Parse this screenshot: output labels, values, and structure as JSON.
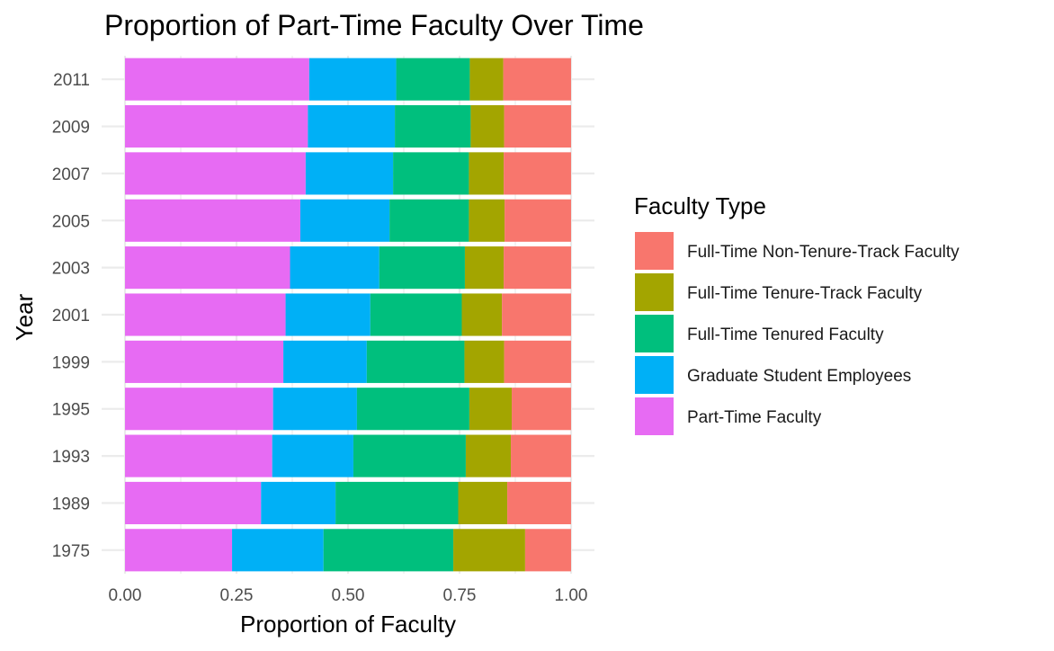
{
  "chart_data": {
    "type": "bar",
    "orientation": "horizontal",
    "stacked": true,
    "title": "Proportion of Part-Time Faculty Over Time",
    "xlabel": "Proportion of Faculty",
    "ylabel": "Year",
    "xlim": [
      0,
      1
    ],
    "xticks": [
      "0.00",
      "0.25",
      "0.50",
      "0.75",
      "1.00"
    ],
    "grid": true,
    "legend_position": "right",
    "legend_title": "Faculty Type",
    "categories": [
      "1975",
      "1989",
      "1993",
      "1995",
      "1999",
      "2001",
      "2003",
      "2005",
      "2007",
      "2009",
      "2011"
    ],
    "series": [
      {
        "name": "Part-Time Faculty",
        "color": "#E76BF3",
        "values": [
          0.24,
          0.305,
          0.33,
          0.332,
          0.355,
          0.36,
          0.37,
          0.393,
          0.405,
          0.41,
          0.413
        ]
      },
      {
        "name": "Graduate Student Employees",
        "color": "#00B0F6",
        "values": [
          0.205,
          0.167,
          0.182,
          0.188,
          0.187,
          0.19,
          0.2,
          0.2,
          0.196,
          0.195,
          0.195
        ]
      },
      {
        "name": "Full-Time Tenured Faculty",
        "color": "#00BF7D",
        "values": [
          0.291,
          0.275,
          0.252,
          0.252,
          0.219,
          0.205,
          0.192,
          0.178,
          0.17,
          0.17,
          0.165
        ]
      },
      {
        "name": "Full-Time Tenure-Track Faculty",
        "color": "#A3A500",
        "values": [
          0.161,
          0.11,
          0.101,
          0.095,
          0.089,
          0.09,
          0.087,
          0.08,
          0.078,
          0.075,
          0.075
        ]
      },
      {
        "name": "Full-Time Non-Tenure-Track Faculty",
        "color": "#F8766D",
        "values": [
          0.103,
          0.143,
          0.135,
          0.133,
          0.15,
          0.155,
          0.151,
          0.149,
          0.151,
          0.15,
          0.152
        ]
      }
    ]
  }
}
